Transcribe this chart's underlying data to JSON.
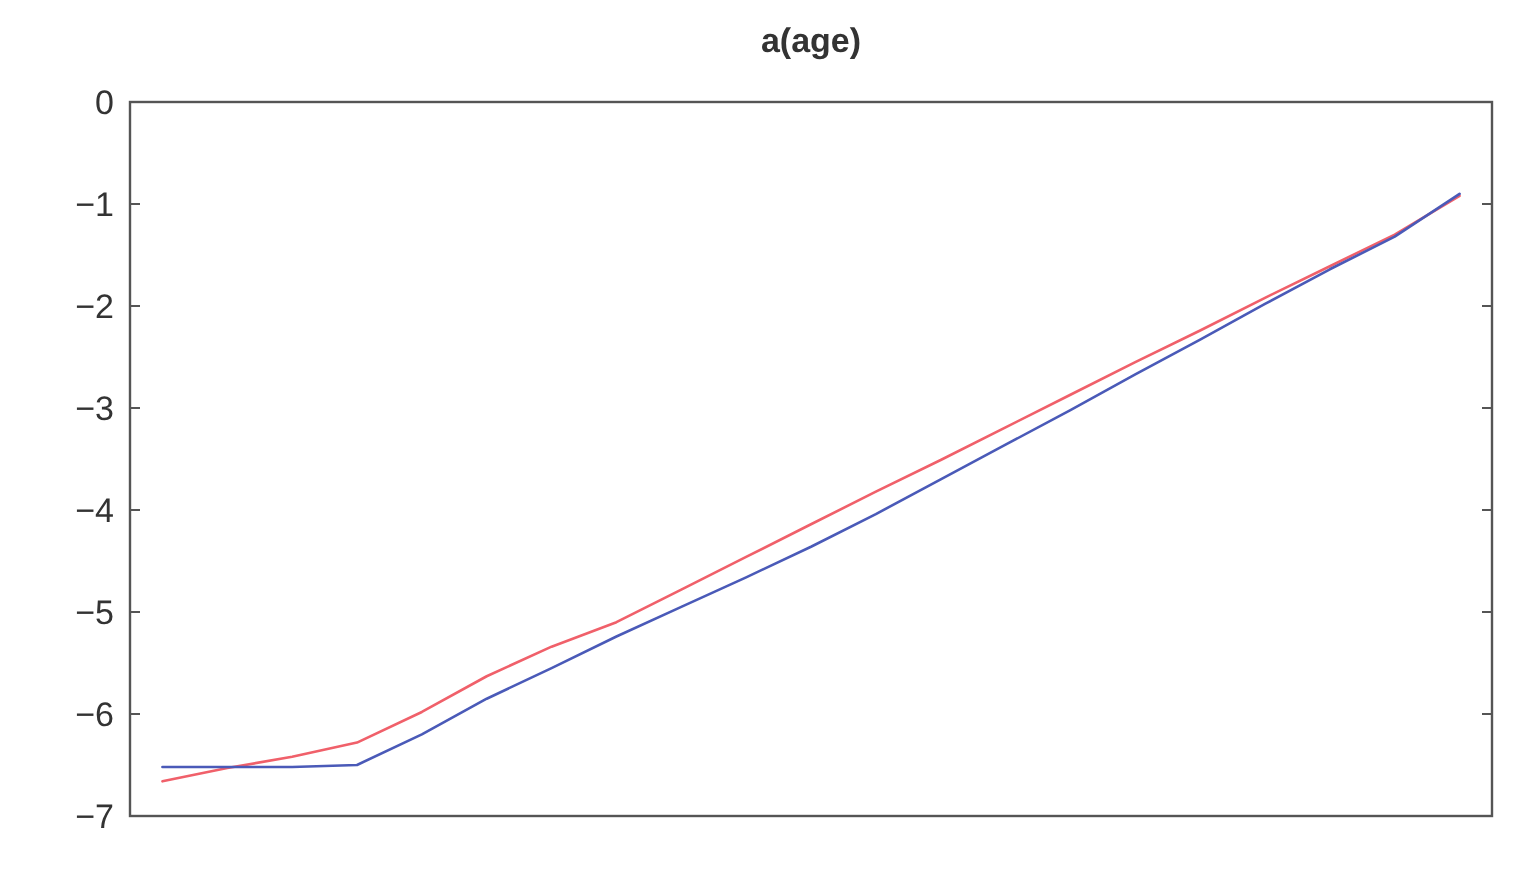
{
  "chart_data": {
    "type": "line",
    "title": "a(age)",
    "categories": [
      null,
      null,
      null,
      null,
      null,
      null,
      null,
      null,
      null,
      null,
      null,
      null,
      null,
      null,
      null,
      null,
      null,
      null,
      null,
      null,
      null
    ],
    "series": [
      {
        "color": "#f0606a",
        "values": [
          -6.66,
          -6.53,
          -6.42,
          -6.28,
          -5.98,
          -5.63,
          -5.34,
          -5.1,
          -4.78,
          -4.46,
          -4.14,
          -3.82,
          -3.51,
          -3.19,
          -2.87,
          -2.55,
          -2.24,
          -1.92,
          -1.61,
          -1.3,
          -0.92
        ]
      },
      {
        "color": "#4a5ab8",
        "values": [
          -6.52,
          -6.52,
          -6.52,
          -6.5,
          -6.2,
          -5.85,
          -5.55,
          -5.24,
          -4.95,
          -4.66,
          -4.36,
          -4.04,
          -3.7,
          -3.36,
          -3.02,
          -2.67,
          -2.33,
          -1.98,
          -1.64,
          -1.32,
          -0.9
        ]
      }
    ],
    "ylim": [
      -7,
      0
    ],
    "yticks": [
      -7,
      -6,
      -5,
      -4,
      -3,
      -2,
      -1,
      0
    ],
    "tick_labels": "y",
    "grid": false,
    "marker": "none",
    "line_style": "solid"
  }
}
